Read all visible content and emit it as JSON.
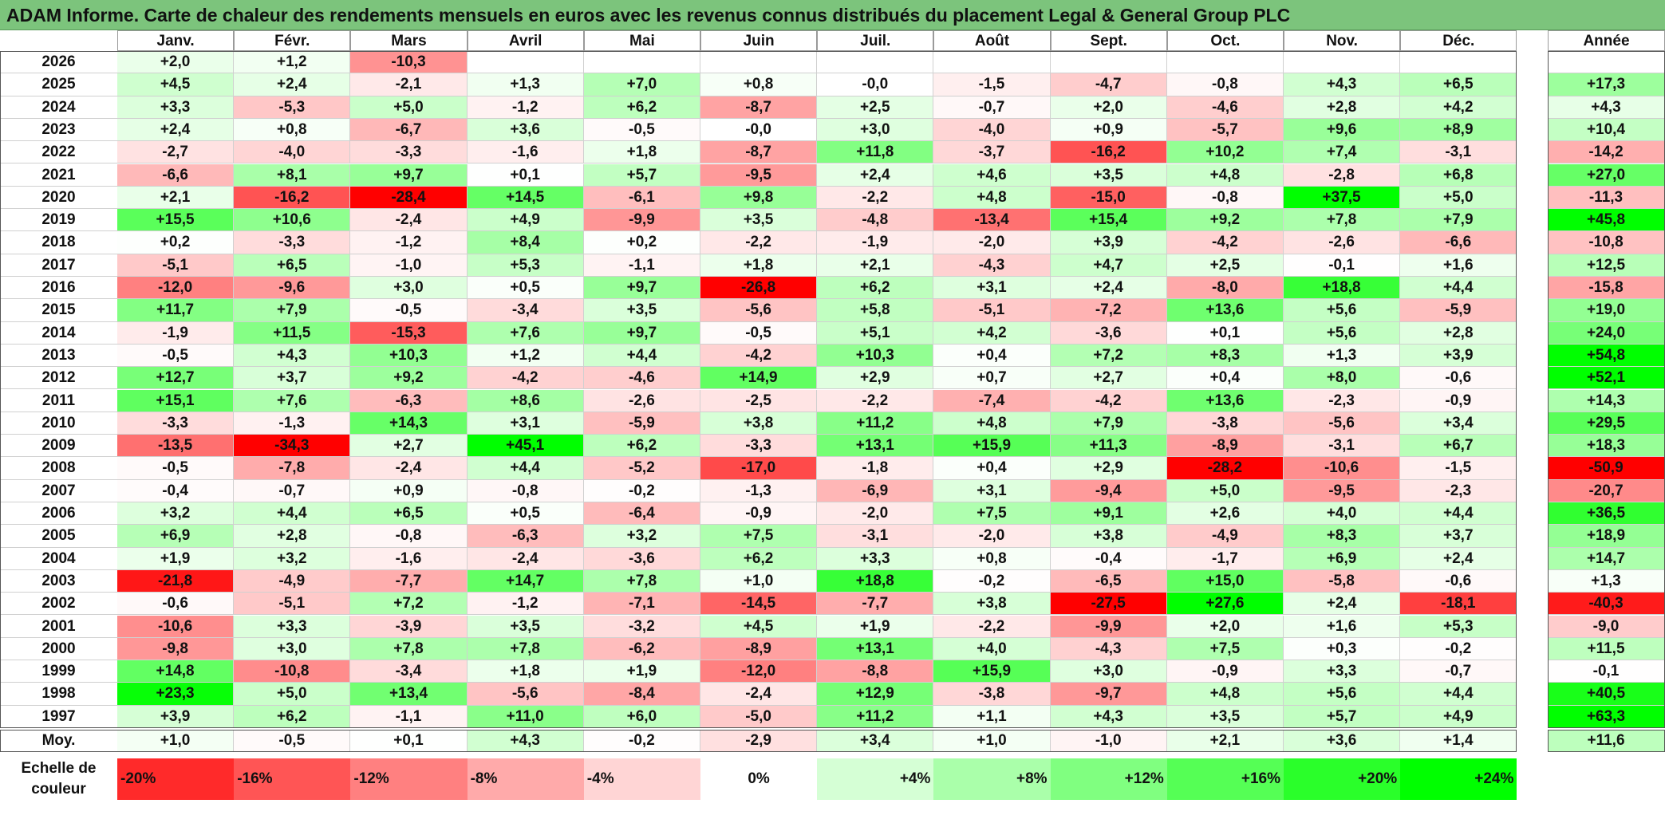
{
  "title": "ADAM Informe. Carte de chaleur des rendements mensuels en euros avec les revenus connus distribués du placement Legal & General Group PLC",
  "chart_data": {
    "type": "heatmap",
    "title": "ADAM Informe. Carte de chaleur des rendements mensuels en euros avec les revenus connus distribués du placement Legal & General Group PLC",
    "columns": [
      "Janv.",
      "Févr.",
      "Mars",
      "Avril",
      "Mai",
      "Juin",
      "Juil.",
      "Août",
      "Sept.",
      "Oct.",
      "Nov.",
      "Déc."
    ],
    "year_header": "Année",
    "rows": [
      {
        "year": "2026",
        "values": [
          "+2,0",
          "+1,2",
          "-10,3",
          "",
          "",
          "",
          "",
          "",
          "",
          "",
          "",
          ""
        ],
        "annual": ""
      },
      {
        "year": "2025",
        "values": [
          "+4,5",
          "+2,4",
          "-2,1",
          "+1,3",
          "+7,0",
          "+0,8",
          "-0,0",
          "-1,5",
          "-4,7",
          "-0,8",
          "+4,3",
          "+6,5"
        ],
        "annual": "+17,3"
      },
      {
        "year": "2024",
        "values": [
          "+3,3",
          "-5,3",
          "+5,0",
          "-1,2",
          "+6,2",
          "-8,7",
          "+2,5",
          "-0,7",
          "+2,0",
          "-4,6",
          "+2,8",
          "+4,2"
        ],
        "annual": "+4,3"
      },
      {
        "year": "2023",
        "values": [
          "+2,4",
          "+0,8",
          "-6,7",
          "+3,6",
          "-0,5",
          "-0,0",
          "+3,0",
          "-4,0",
          "+0,9",
          "-5,7",
          "+9,6",
          "+8,9"
        ],
        "annual": "+10,4"
      },
      {
        "year": "2022",
        "values": [
          "-2,7",
          "-4,0",
          "-3,3",
          "-1,6",
          "+1,8",
          "-8,7",
          "+11,8",
          "-3,7",
          "-16,2",
          "+10,2",
          "+7,4",
          "-3,1"
        ],
        "annual": "-14,2"
      },
      {
        "year": "2021",
        "values": [
          "-6,6",
          "+8,1",
          "+9,7",
          "+0,1",
          "+5,7",
          "-9,5",
          "+2,4",
          "+4,6",
          "+3,5",
          "+4,8",
          "-2,8",
          "+6,8"
        ],
        "annual": "+27,0"
      },
      {
        "year": "2020",
        "values": [
          "+2,1",
          "-16,2",
          "-28,4",
          "+14,5",
          "-6,1",
          "+9,8",
          "-2,2",
          "+4,8",
          "-15,0",
          "-0,8",
          "+37,5",
          "+5,0"
        ],
        "annual": "-11,3"
      },
      {
        "year": "2019",
        "values": [
          "+15,5",
          "+10,6",
          "-2,4",
          "+4,9",
          "-9,9",
          "+3,5",
          "-4,8",
          "-13,4",
          "+15,4",
          "+9,2",
          "+7,8",
          "+7,9"
        ],
        "annual": "+45,8"
      },
      {
        "year": "2018",
        "values": [
          "+0,2",
          "-3,3",
          "-1,2",
          "+8,4",
          "+0,2",
          "-2,2",
          "-1,9",
          "-2,0",
          "+3,9",
          "-4,2",
          "-2,6",
          "-6,6"
        ],
        "annual": "-10,8"
      },
      {
        "year": "2017",
        "values": [
          "-5,1",
          "+6,5",
          "-1,0",
          "+5,3",
          "-1,1",
          "+1,8",
          "+2,1",
          "-4,3",
          "+4,7",
          "+2,5",
          "-0,1",
          "+1,6"
        ],
        "annual": "+12,5"
      },
      {
        "year": "2016",
        "values": [
          "-12,0",
          "-9,6",
          "+3,0",
          "+0,5",
          "+9,7",
          "-26,8",
          "+6,2",
          "+3,1",
          "+2,4",
          "-8,0",
          "+18,8",
          "+4,4"
        ],
        "annual": "-15,8"
      },
      {
        "year": "2015",
        "values": [
          "+11,7",
          "+7,9",
          "-0,5",
          "-3,4",
          "+3,5",
          "-5,6",
          "+5,8",
          "-5,1",
          "-7,2",
          "+13,6",
          "+5,6",
          "-5,9"
        ],
        "annual": "+19,0"
      },
      {
        "year": "2014",
        "values": [
          "-1,9",
          "+11,5",
          "-15,3",
          "+7,6",
          "+9,7",
          "-0,5",
          "+5,1",
          "+4,2",
          "-3,6",
          "+0,1",
          "+5,6",
          "+2,8"
        ],
        "annual": "+24,0"
      },
      {
        "year": "2013",
        "values": [
          "-0,5",
          "+4,3",
          "+10,3",
          "+1,2",
          "+4,4",
          "-4,2",
          "+10,3",
          "+0,4",
          "+7,2",
          "+8,3",
          "+1,3",
          "+3,9"
        ],
        "annual": "+54,8"
      },
      {
        "year": "2012",
        "values": [
          "+12,7",
          "+3,7",
          "+9,2",
          "-4,2",
          "-4,6",
          "+14,9",
          "+2,9",
          "+0,7",
          "+2,7",
          "+0,4",
          "+8,0",
          "-0,6"
        ],
        "annual": "+52,1"
      },
      {
        "year": "2011",
        "values": [
          "+15,1",
          "+7,6",
          "-6,3",
          "+8,6",
          "-2,6",
          "-2,5",
          "-2,2",
          "-7,4",
          "-4,2",
          "+13,6",
          "-2,3",
          "-0,9"
        ],
        "annual": "+14,3"
      },
      {
        "year": "2010",
        "values": [
          "-3,3",
          "-1,3",
          "+14,3",
          "+3,1",
          "-5,9",
          "+3,8",
          "+11,2",
          "+4,8",
          "+7,9",
          "-3,8",
          "-5,6",
          "+3,4"
        ],
        "annual": "+29,5"
      },
      {
        "year": "2009",
        "values": [
          "-13,5",
          "-34,3",
          "+2,7",
          "+45,1",
          "+6,2",
          "-3,3",
          "+13,1",
          "+15,9",
          "+11,3",
          "-8,9",
          "-3,1",
          "+6,7"
        ],
        "annual": "+18,3"
      },
      {
        "year": "2008",
        "values": [
          "-0,5",
          "-7,8",
          "-2,4",
          "+4,4",
          "-5,2",
          "-17,0",
          "-1,8",
          "+0,4",
          "+2,9",
          "-28,2",
          "-10,6",
          "-1,5"
        ],
        "annual": "-50,9"
      },
      {
        "year": "2007",
        "values": [
          "-0,4",
          "-0,7",
          "+0,9",
          "-0,8",
          "-0,2",
          "-1,3",
          "-6,9",
          "+3,1",
          "-9,4",
          "+5,0",
          "-9,5",
          "-2,3"
        ],
        "annual": "-20,7"
      },
      {
        "year": "2006",
        "values": [
          "+3,2",
          "+4,4",
          "+6,5",
          "+0,5",
          "-6,4",
          "-0,9",
          "-2,0",
          "+7,5",
          "+9,1",
          "+2,6",
          "+4,0",
          "+4,4"
        ],
        "annual": "+36,5"
      },
      {
        "year": "2005",
        "values": [
          "+6,9",
          "+2,8",
          "-0,8",
          "-6,3",
          "+3,2",
          "+7,5",
          "-3,1",
          "-2,0",
          "+3,8",
          "-4,9",
          "+8,3",
          "+3,7"
        ],
        "annual": "+18,9"
      },
      {
        "year": "2004",
        "values": [
          "+1,9",
          "+3,2",
          "-1,6",
          "-2,4",
          "-3,6",
          "+6,2",
          "+3,3",
          "+0,8",
          "-0,4",
          "-1,7",
          "+6,9",
          "+2,4"
        ],
        "annual": "+14,7"
      },
      {
        "year": "2003",
        "values": [
          "-21,8",
          "-4,9",
          "-7,7",
          "+14,7",
          "+7,8",
          "+1,0",
          "+18,8",
          "-0,2",
          "-6,5",
          "+15,0",
          "-5,8",
          "-0,6"
        ],
        "annual": "+1,3"
      },
      {
        "year": "2002",
        "values": [
          "-0,6",
          "-5,1",
          "+7,2",
          "-1,2",
          "-7,1",
          "-14,5",
          "-7,7",
          "+3,8",
          "-27,5",
          "+27,6",
          "+2,4",
          "-18,1"
        ],
        "annual": "-40,3"
      },
      {
        "year": "2001",
        "values": [
          "-10,6",
          "+3,3",
          "-3,9",
          "+3,5",
          "-3,2",
          "+4,5",
          "+1,9",
          "-2,2",
          "-9,9",
          "+2,0",
          "+1,6",
          "+5,3"
        ],
        "annual": "-9,0"
      },
      {
        "year": "2000",
        "values": [
          "-9,8",
          "+3,0",
          "+7,8",
          "+7,8",
          "-6,2",
          "-8,9",
          "+13,1",
          "+4,0",
          "-4,3",
          "+7,5",
          "+0,3",
          "-0,2"
        ],
        "annual": "+11,5"
      },
      {
        "year": "1999",
        "values": [
          "+14,8",
          "-10,8",
          "-3,4",
          "+1,8",
          "+1,9",
          "-12,0",
          "-8,8",
          "+15,9",
          "+3,0",
          "-0,9",
          "+3,3",
          "-0,7"
        ],
        "annual": "-0,1"
      },
      {
        "year": "1998",
        "values": [
          "+23,3",
          "+5,0",
          "+13,4",
          "-5,6",
          "-8,4",
          "-2,4",
          "+12,9",
          "-3,8",
          "-9,7",
          "+4,8",
          "+5,6",
          "+4,4"
        ],
        "annual": "+40,5"
      },
      {
        "year": "1997",
        "values": [
          "+3,9",
          "+6,2",
          "-1,1",
          "+11,0",
          "+6,0",
          "-5,0",
          "+11,2",
          "+1,1",
          "+4,3",
          "+3,5",
          "+5,7",
          "+4,9"
        ],
        "annual": "+63,3"
      }
    ],
    "average": {
      "label": "Moy.",
      "values": [
        "+1,0",
        "-0,5",
        "+0,1",
        "+4,3",
        "-0,2",
        "-2,9",
        "+3,4",
        "+1,0",
        "-1,0",
        "+2,1",
        "+3,6",
        "+1,4"
      ],
      "annual": "+11,6"
    },
    "scale": {
      "label_line1": "Echelle de",
      "label_line2": "couleur",
      "steps": [
        "-20%",
        "-16%",
        "-12%",
        "-8%",
        "-4%",
        "0%",
        "+4%",
        "+8%",
        "+12%",
        "+16%",
        "+20%",
        "+24%"
      ]
    }
  },
  "colors": {
    "title_bg": "#7cc47c",
    "negative_max": "#ff0000",
    "positive_max": "#00ff00",
    "neutral": "#ffffff"
  }
}
